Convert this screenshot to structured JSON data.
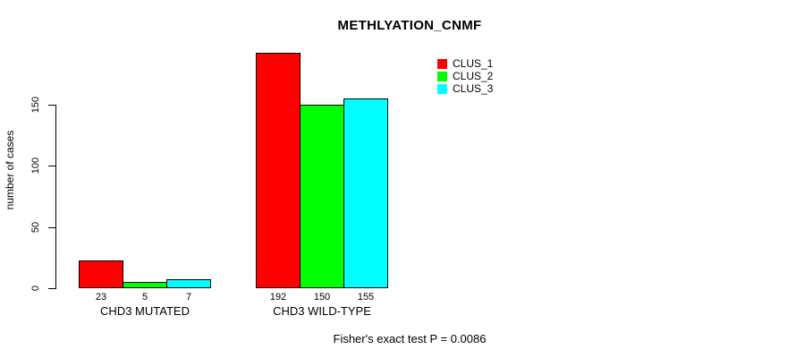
{
  "chart_data": {
    "type": "bar",
    "title": "METHLYATION_CNMF",
    "xlabel": "",
    "ylabel": "number of cases",
    "categories": [
      "CHD3 MUTATED",
      "CHD3 WILD-TYPE"
    ],
    "series": [
      {
        "name": "CLUS_1",
        "color": "#ff0000",
        "values": [
          23,
          192
        ]
      },
      {
        "name": "CLUS_2",
        "color": "#00ff00",
        "values": [
          5,
          150
        ]
      },
      {
        "name": "CLUS_3",
        "color": "#00ffff",
        "values": [
          7,
          155
        ]
      }
    ],
    "yticks": [
      0,
      50,
      100,
      150
    ],
    "ylim": [
      0,
      200
    ],
    "show_bar_values": true,
    "grid": false,
    "legend_position": "top-right",
    "annotation": "Fisher's exact test P = 0.0086"
  }
}
